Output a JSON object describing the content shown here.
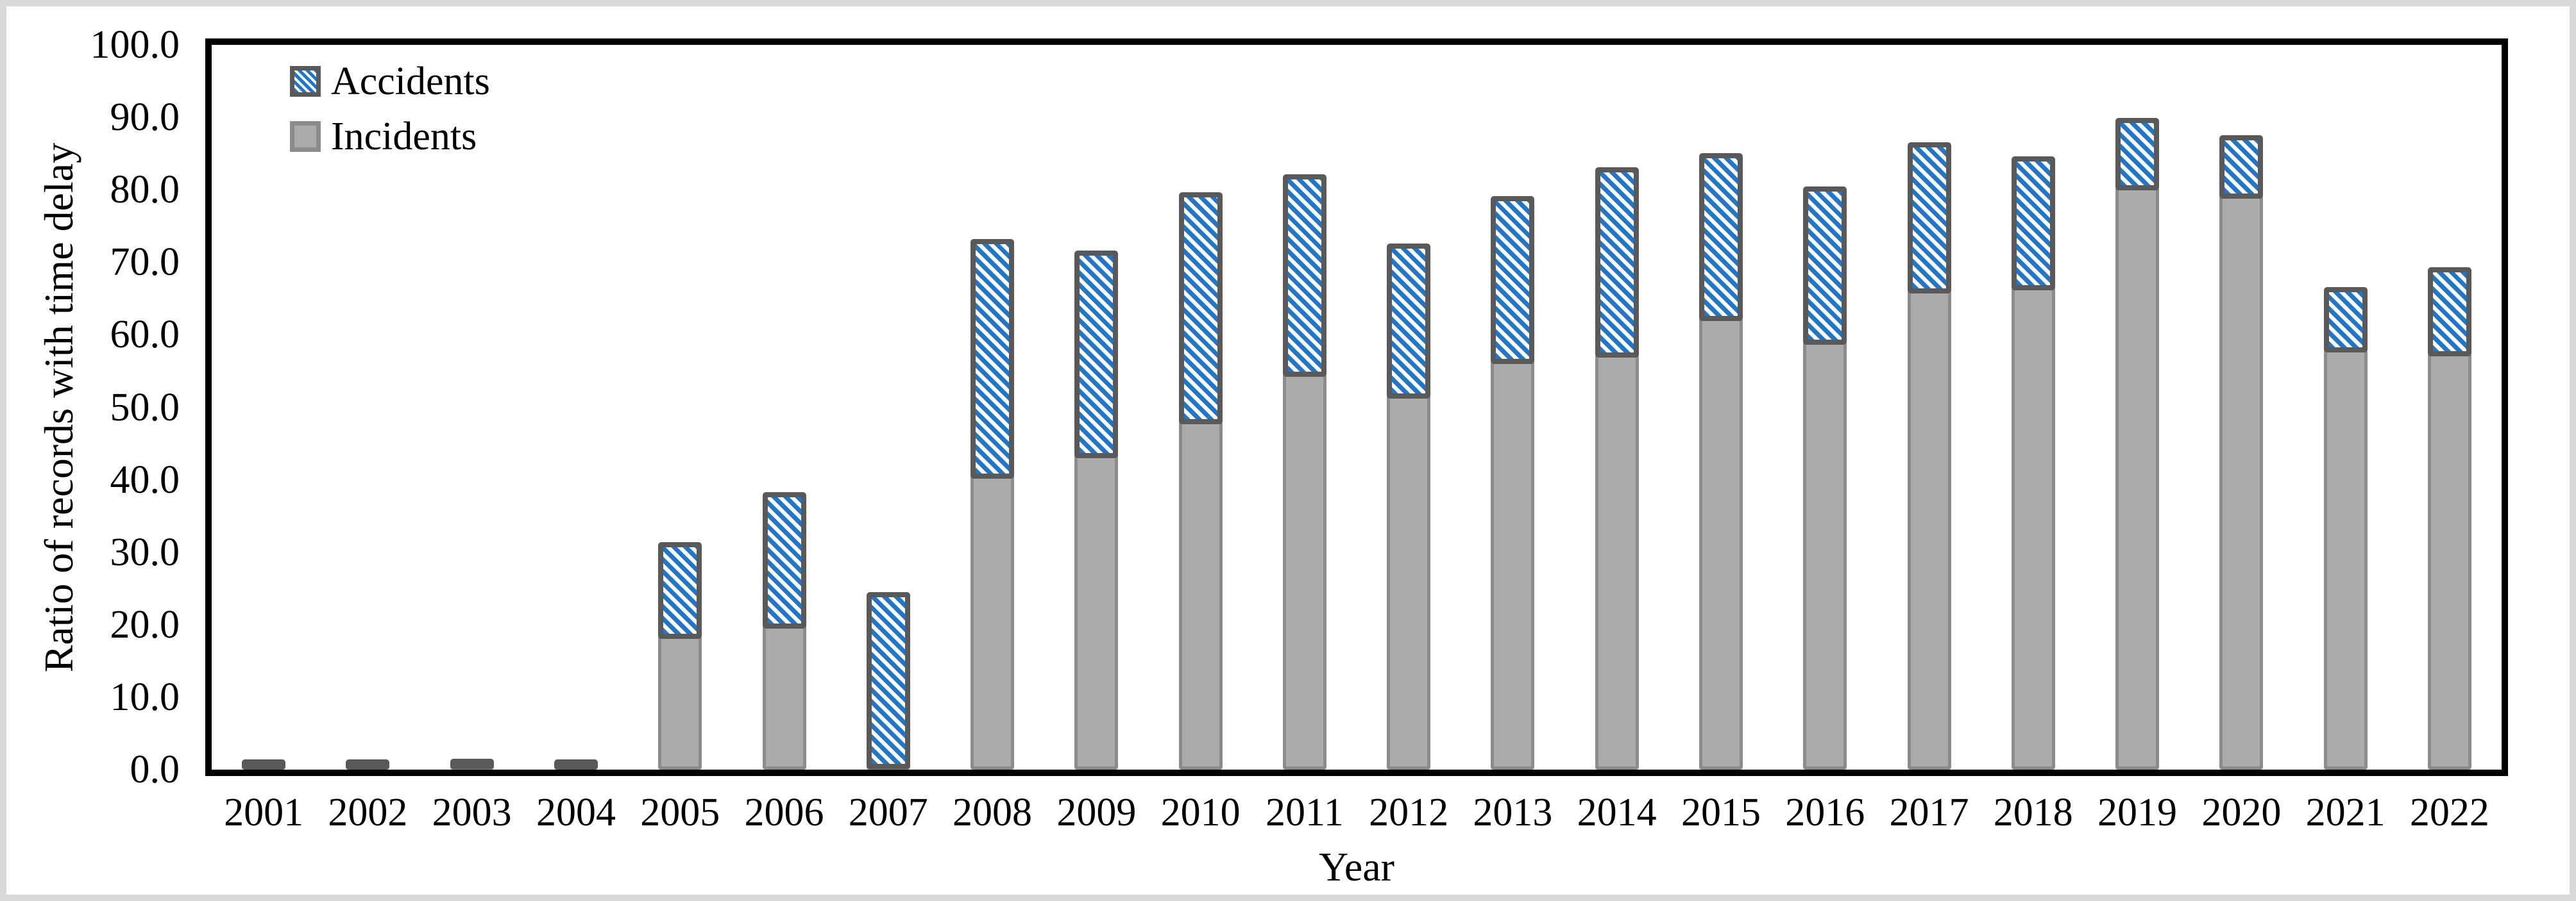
{
  "figure": {
    "x_axis_title": "Year",
    "y_axis_title": "Ratio of records with time delay"
  },
  "legend": [
    {
      "label": "Accidents",
      "series": "accidents",
      "swatch": "blue-diagonal-hatch"
    },
    {
      "label": "Incidents",
      "series": "incidents",
      "swatch": "gray-solid"
    }
  ],
  "colors": {
    "accidents_blue": "#2176C7",
    "accidents_border": "#595959",
    "incidents_gray": "#ABABAB",
    "incidents_border": "#8C8C8C",
    "axis_black": "#000000",
    "outer_border_gray": "#D9D9D9"
  },
  "chart_data": {
    "type": "bar",
    "stacked": true,
    "title": "",
    "xlabel": "Year",
    "ylabel": "Ratio of records with time delay",
    "ylim": [
      0,
      100
    ],
    "grid": false,
    "legend_position": "top-left-inside",
    "ytick_labels": [
      "0.0",
      "10.0",
      "20.0",
      "30.0",
      "40.0",
      "50.0",
      "60.0",
      "70.0",
      "80.0",
      "90.0",
      "100.0"
    ],
    "categories": [
      "2001",
      "2002",
      "2003",
      "2004",
      "2005",
      "2006",
      "2007",
      "2008",
      "2009",
      "2010",
      "2011",
      "2012",
      "2013",
      "2014",
      "2015",
      "2016",
      "2017",
      "2018",
      "2019",
      "2020",
      "2021",
      "2022"
    ],
    "series": [
      {
        "name": "Incidents",
        "style": "gray-solid",
        "values": [
          0.4,
          0.3,
          0.5,
          0.4,
          18.5,
          19.9,
          0.5,
          40.6,
          43.4,
          48.1,
          54.6,
          51.6,
          56.4,
          57.3,
          62.3,
          59.1,
          66.1,
          66.6,
          80.4,
          79.2,
          58.0,
          57.5
        ]
      },
      {
        "name": "Accidents",
        "style": "blue-diagonal-hatch",
        "values": [
          0.6,
          0.5,
          0.1,
          0.1,
          12.9,
          18.4,
          24.0,
          32.6,
          28.2,
          31.6,
          27.5,
          21.0,
          22.7,
          25.8,
          22.8,
          21.4,
          20.5,
          18.0,
          9.5,
          8.3,
          8.6,
          11.8
        ]
      }
    ]
  }
}
